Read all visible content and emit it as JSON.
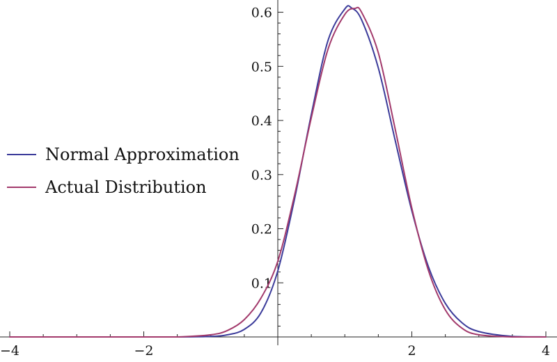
{
  "chart_data": {
    "type": "line",
    "title": "",
    "xlabel": "",
    "ylabel": "",
    "xlim": [
      -4,
      4
    ],
    "ylim": [
      0,
      0.62
    ],
    "grid": false,
    "legend_position": "left-middle",
    "x_ticks": [
      {
        "value": -4,
        "label": "−4"
      },
      {
        "value": -2,
        "label": "−2"
      },
      {
        "value": 2,
        "label": "2"
      },
      {
        "value": 4,
        "label": "4"
      }
    ],
    "y_ticks": [
      {
        "value": 0.1,
        "label": "0.1"
      },
      {
        "value": 0.2,
        "label": "0.2"
      },
      {
        "value": 0.3,
        "label": "0.3"
      },
      {
        "value": 0.4,
        "label": "0.4"
      },
      {
        "value": 0.5,
        "label": "0.5"
      },
      {
        "value": 0.6,
        "label": "0.6"
      }
    ],
    "series": [
      {
        "name": "Normal Approximation",
        "color": "#3b3b9a",
        "x": [
          -4.0,
          -3.0,
          -2.0,
          -1.5,
          -1.0,
          -0.75,
          -0.5,
          -0.25,
          0.0,
          0.25,
          0.5,
          0.75,
          1.0,
          1.1,
          1.25,
          1.5,
          1.75,
          2.0,
          2.25,
          2.5,
          2.75,
          3.0,
          3.5,
          4.0
        ],
        "y": [
          0.0,
          0.0,
          0.0,
          0.0,
          0.001,
          0.004,
          0.014,
          0.045,
          0.122,
          0.255,
          0.411,
          0.548,
          0.606,
          0.608,
          0.586,
          0.497,
          0.364,
          0.233,
          0.129,
          0.062,
          0.026,
          0.01,
          0.001,
          0.0
        ]
      },
      {
        "name": "Actual Distribution",
        "color": "#a2396b",
        "x": [
          -4.0,
          -3.0,
          -2.0,
          -1.5,
          -1.0,
          -0.75,
          -0.5,
          -0.25,
          0.0,
          0.25,
          0.5,
          0.75,
          1.0,
          1.15,
          1.25,
          1.5,
          1.75,
          2.0,
          2.25,
          2.5,
          2.75,
          3.0,
          3.5,
          4.0
        ],
        "y": [
          0.0,
          0.0,
          0.0,
          0.0,
          0.004,
          0.012,
          0.032,
          0.072,
          0.14,
          0.262,
          0.405,
          0.532,
          0.596,
          0.607,
          0.6,
          0.525,
          0.385,
          0.238,
          0.122,
          0.05,
          0.016,
          0.004,
          0.0,
          0.0
        ]
      }
    ]
  }
}
